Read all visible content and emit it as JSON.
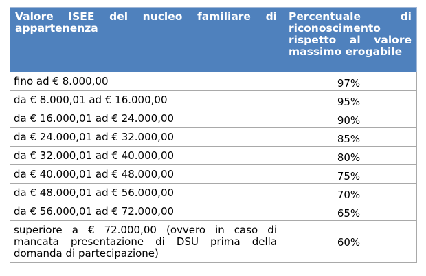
{
  "table": {
    "headers": [
      "Valore ISEE del nucleo familiare di appartenenza",
      "Percentuale di riconoscimento rispetto al valore massimo erogabile"
    ],
    "rows": [
      {
        "range": "fino ad € 8.000,00",
        "percent": "97%"
      },
      {
        "range": "da € 8.000,01 ad € 16.000,00",
        "percent": "95%"
      },
      {
        "range": "da € 16.000,01 ad € 24.000,00",
        "percent": "90%"
      },
      {
        "range": "da € 24.000,01 ad € 32.000,00",
        "percent": "85%"
      },
      {
        "range": "da € 32.000,01 ad € 40.000,00",
        "percent": "80%"
      },
      {
        "range": "da € 40.000,01 ad € 48.000,00",
        "percent": "75%"
      },
      {
        "range": "da € 48.000,01 ad € 56.000,00",
        "percent": "70%"
      },
      {
        "range": "da € 56.000,01 ad € 72.000,00",
        "percent": "65%"
      },
      {
        "range": "superiore a € 72.000,00 (ovvero in caso di mancata presentazione di DSU prima della domanda di partecipazione)",
        "percent": "60%"
      }
    ]
  },
  "colors": {
    "header_bg": "#4f81bd",
    "header_text": "#ffffff",
    "border": "#a9a9a9"
  }
}
